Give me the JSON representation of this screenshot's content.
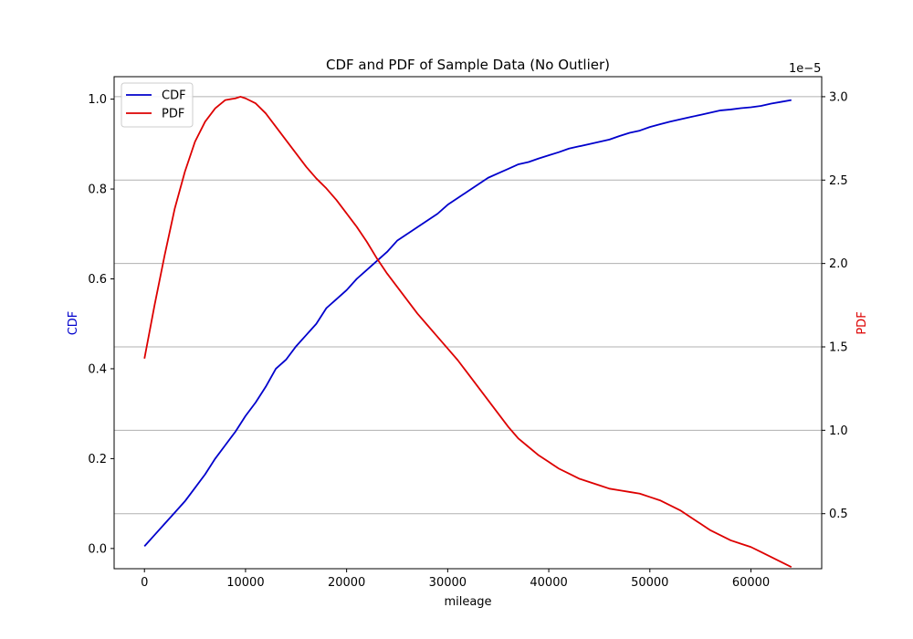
{
  "chart_data": {
    "type": "line",
    "title": "CDF and PDF of Sample Data (No Outlier)",
    "xlabel": "mileage",
    "xlim": [
      -3000,
      67000
    ],
    "x_ticks": [
      0,
      10000,
      20000,
      30000,
      40000,
      50000,
      60000
    ],
    "x_tick_labels": [
      "0",
      "10000",
      "20000",
      "30000",
      "40000",
      "50000",
      "60000"
    ],
    "y_left": {
      "label": "CDF",
      "color": "#0000cc",
      "lim": [
        -0.045,
        1.05
      ],
      "ticks": [
        0.0,
        0.2,
        0.4,
        0.6,
        0.8,
        1.0
      ],
      "tick_labels": [
        "0.0",
        "0.2",
        "0.4",
        "0.6",
        "0.8",
        "1.0"
      ]
    },
    "y_right": {
      "label": "PDF",
      "color": "#dd0000",
      "lim": [
        0.17,
        3.12
      ],
      "offset_text": "1e−5",
      "ticks": [
        0.5,
        1.0,
        1.5,
        2.0,
        2.5,
        3.0
      ],
      "tick_labels": [
        "0.5",
        "1.0",
        "1.5",
        "2.0",
        "2.5",
        "3.0"
      ]
    },
    "grid": "right-axis horizontal lines",
    "legend": "top-left",
    "series": [
      {
        "name": "CDF",
        "axis": "left",
        "color": "#0000cc",
        "x": [
          0,
          1000,
          2000,
          3000,
          4000,
          5000,
          6000,
          7000,
          8000,
          9000,
          10000,
          11000,
          12000,
          13000,
          14000,
          15000,
          16000,
          17000,
          18000,
          19000,
          20000,
          21000,
          22000,
          23000,
          24000,
          25000,
          26000,
          27000,
          28000,
          29000,
          30000,
          31000,
          32000,
          33000,
          34000,
          35000,
          36000,
          37000,
          38000,
          39000,
          40000,
          41000,
          42000,
          43000,
          44000,
          45000,
          46000,
          47000,
          48000,
          49000,
          50000,
          51000,
          52000,
          53000,
          54000,
          55000,
          56000,
          57000,
          58000,
          59000,
          60000,
          61000,
          62000,
          63000,
          64000
        ],
        "y": [
          0.005,
          0.03,
          0.055,
          0.08,
          0.105,
          0.135,
          0.165,
          0.2,
          0.23,
          0.26,
          0.295,
          0.325,
          0.36,
          0.4,
          0.42,
          0.45,
          0.475,
          0.5,
          0.535,
          0.555,
          0.575,
          0.6,
          0.62,
          0.64,
          0.66,
          0.685,
          0.7,
          0.715,
          0.73,
          0.745,
          0.765,
          0.78,
          0.795,
          0.81,
          0.825,
          0.835,
          0.845,
          0.855,
          0.86,
          0.868,
          0.875,
          0.882,
          0.89,
          0.895,
          0.9,
          0.905,
          0.91,
          0.918,
          0.925,
          0.93,
          0.938,
          0.944,
          0.95,
          0.955,
          0.96,
          0.965,
          0.97,
          0.975,
          0.977,
          0.98,
          0.982,
          0.985,
          0.99,
          0.994,
          0.998
        ]
      },
      {
        "name": "PDF",
        "axis": "right",
        "color": "#dd0000",
        "x": [
          0,
          1000,
          2000,
          3000,
          4000,
          5000,
          6000,
          7000,
          8000,
          9000,
          9500,
          10000,
          11000,
          12000,
          13000,
          14000,
          15000,
          16000,
          17000,
          18000,
          19000,
          20000,
          21000,
          22000,
          23000,
          24000,
          25000,
          26000,
          27000,
          28000,
          29000,
          30000,
          31000,
          32000,
          33000,
          34000,
          35000,
          36000,
          37000,
          38000,
          39000,
          40000,
          41000,
          42000,
          43000,
          44000,
          45000,
          46000,
          47000,
          48000,
          49000,
          50000,
          51000,
          52000,
          53000,
          54000,
          55000,
          56000,
          57000,
          58000,
          59000,
          60000,
          61000,
          62000,
          63000,
          64000
        ],
        "y": [
          1.43,
          1.75,
          2.05,
          2.33,
          2.55,
          2.73,
          2.85,
          2.93,
          2.98,
          2.99,
          3.0,
          2.99,
          2.96,
          2.9,
          2.82,
          2.74,
          2.66,
          2.58,
          2.51,
          2.45,
          2.38,
          2.3,
          2.22,
          2.13,
          2.03,
          1.94,
          1.86,
          1.78,
          1.7,
          1.63,
          1.56,
          1.49,
          1.42,
          1.34,
          1.26,
          1.18,
          1.1,
          1.02,
          0.95,
          0.9,
          0.85,
          0.81,
          0.77,
          0.74,
          0.71,
          0.69,
          0.67,
          0.65,
          0.64,
          0.63,
          0.62,
          0.6,
          0.58,
          0.55,
          0.52,
          0.48,
          0.44,
          0.4,
          0.37,
          0.34,
          0.32,
          0.3,
          0.27,
          0.24,
          0.21,
          0.18
        ]
      }
    ]
  }
}
